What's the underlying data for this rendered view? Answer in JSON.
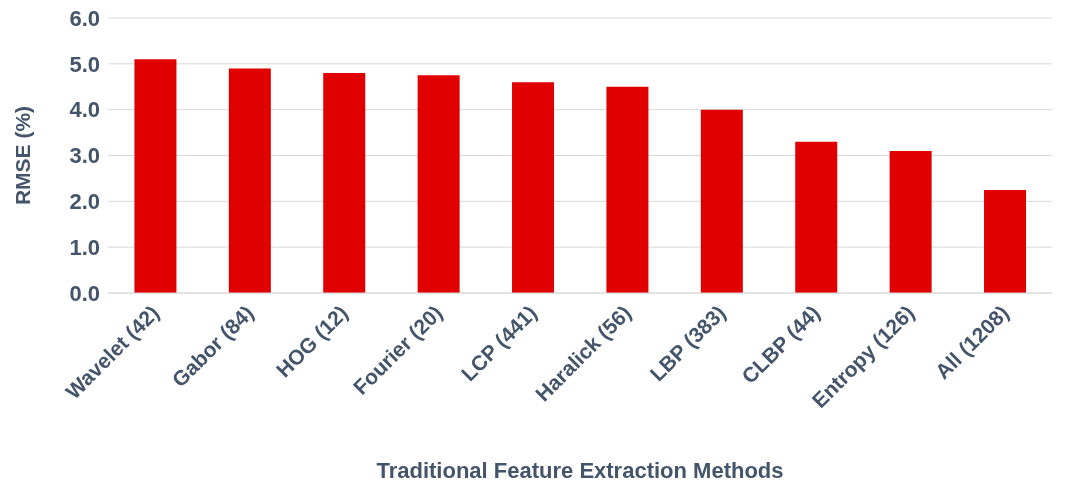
{
  "chart_data": {
    "type": "bar",
    "xlabel": "Traditional Feature Extraction Methods",
    "ylabel": "RMSE (%)",
    "categories": [
      "Wavelet (42)",
      "Gabor (84)",
      "HOG (12)",
      "Fourier (20)",
      "LCP (441)",
      "Haralick (56)",
      "LBP (383)",
      "CLBP (44)",
      "Entropy (126)",
      "All (1208)"
    ],
    "values": [
      5.1,
      4.9,
      4.8,
      4.75,
      4.6,
      4.5,
      4.0,
      3.3,
      3.1,
      2.25
    ],
    "color": "#e00000",
    "ylim": [
      0,
      6
    ],
    "yticks": [
      {
        "value": 0,
        "label": "0.0"
      },
      {
        "value": 1,
        "label": "1.0"
      },
      {
        "value": 2,
        "label": "2.0"
      },
      {
        "value": 3,
        "label": "3.0"
      },
      {
        "value": 4,
        "label": "4.0"
      },
      {
        "value": 5,
        "label": "5.0"
      },
      {
        "value": 6,
        "label": "6.0"
      }
    ],
    "grid": "y"
  }
}
